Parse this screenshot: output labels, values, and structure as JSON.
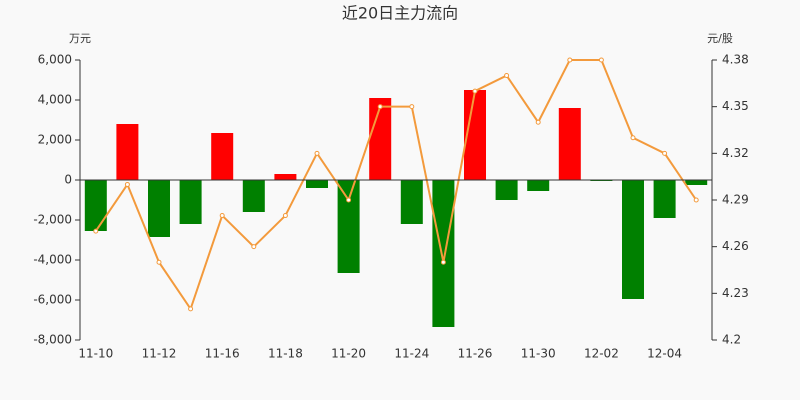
{
  "chart_data": {
    "type": "bar",
    "title": "近20日主力流向",
    "y_unit": "万元",
    "y2_unit": "元/股",
    "categories": [
      "11-10",
      null,
      "11-12",
      null,
      "11-16",
      null,
      "11-18",
      null,
      "11-20",
      null,
      "11-24",
      null,
      "11-26",
      null,
      "11-30",
      null,
      "12-02",
      null,
      "12-04",
      null
    ],
    "series": [
      {
        "type": "bar",
        "color": "#ff0000",
        "negative_color": "#008000",
        "values": [
          -2550,
          2800,
          -2850,
          -2200,
          2350,
          -1600,
          300,
          -400,
          -4650,
          4100,
          -2200,
          -7350,
          4500,
          -1000,
          -550,
          3600,
          -50,
          -5950,
          -1900,
          -250
        ]
      },
      {
        "type": "line",
        "axis": "y2",
        "color": "#f39a3c",
        "values": [
          4.27,
          4.3,
          4.25,
          4.22,
          4.28,
          4.26,
          4.28,
          4.32,
          4.29,
          4.35,
          4.35,
          4.25,
          4.36,
          4.37,
          4.34,
          4.38,
          4.38,
          4.33,
          4.32,
          4.29
        ]
      }
    ],
    "ylim": [
      -8000,
      6000
    ],
    "yticks": [
      {
        "value": -8000,
        "label": "-8,000"
      },
      {
        "value": -6000,
        "label": "-6,000"
      },
      {
        "value": -4000,
        "label": "-4,000"
      },
      {
        "value": -2000,
        "label": "-2,000"
      },
      0,
      {
        "value": 2000,
        "label": "2,000"
      },
      {
        "value": 4000,
        "label": "4,000"
      },
      {
        "value": 6000,
        "label": "6,000"
      }
    ],
    "y2lim": [
      4.2,
      4.38
    ],
    "y2ticks": [
      4.2,
      4.23,
      4.26,
      4.29,
      4.32,
      4.35,
      4.38
    ]
  }
}
